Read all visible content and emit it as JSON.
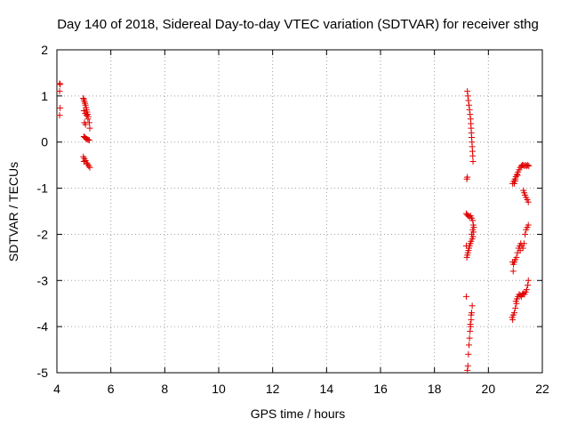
{
  "chart_data": {
    "type": "scatter",
    "title": "Day 140 of 2018, Sidereal Day-to-day VTEC variation (SDTVAR) for receiver sthg",
    "xlabel": "GPS time / hours",
    "ylabel": "SDTVAR / TECUs",
    "xlim": [
      4,
      22
    ],
    "ylim": [
      -5,
      2
    ],
    "xticks": [
      4,
      6,
      8,
      10,
      12,
      14,
      16,
      18,
      20,
      22
    ],
    "yticks": [
      -5,
      -4,
      -3,
      -2,
      -1,
      0,
      1,
      2
    ],
    "grid": true,
    "marker": "+",
    "color": "#e00000",
    "series": [
      {
        "name": "SDTVAR",
        "points": [
          [
            4.1,
            1.27
          ],
          [
            4.12,
            1.25
          ],
          [
            4.1,
            1.1
          ],
          [
            4.12,
            0.74
          ],
          [
            4.1,
            0.58
          ],
          [
            4.98,
            0.95
          ],
          [
            5.0,
            0.92
          ],
          [
            5.02,
            0.88
          ],
          [
            5.04,
            0.84
          ],
          [
            5.06,
            0.8
          ],
          [
            5.08,
            0.75
          ],
          [
            5.1,
            0.7
          ],
          [
            5.12,
            0.65
          ],
          [
            5.14,
            0.6
          ],
          [
            5.16,
            0.55
          ],
          [
            5.0,
            0.68
          ],
          [
            5.05,
            0.62
          ],
          [
            5.1,
            0.58
          ],
          [
            5.15,
            0.5
          ],
          [
            5.2,
            0.42
          ],
          [
            5.22,
            0.3
          ],
          [
            5.02,
            0.42
          ],
          [
            5.06,
            0.38
          ],
          [
            5.0,
            0.12
          ],
          [
            5.04,
            0.1
          ],
          [
            5.08,
            0.08
          ],
          [
            5.12,
            0.06
          ],
          [
            5.16,
            0.05
          ],
          [
            5.2,
            0.04
          ],
          [
            4.98,
            -0.32
          ],
          [
            5.02,
            -0.36
          ],
          [
            5.06,
            -0.4
          ],
          [
            5.1,
            -0.45
          ],
          [
            5.14,
            -0.48
          ],
          [
            5.18,
            -0.52
          ],
          [
            5.22,
            -0.55
          ],
          [
            5.0,
            -0.42
          ],
          [
            19.22,
            1.1
          ],
          [
            19.24,
            1.0
          ],
          [
            19.26,
            0.9
          ],
          [
            19.28,
            0.8
          ],
          [
            19.3,
            0.7
          ],
          [
            19.32,
            0.6
          ],
          [
            19.34,
            0.5
          ],
          [
            19.35,
            0.4
          ],
          [
            19.36,
            0.3
          ],
          [
            19.37,
            0.2
          ],
          [
            19.38,
            0.1
          ],
          [
            19.39,
            0.0
          ],
          [
            19.4,
            -0.1
          ],
          [
            19.41,
            -0.2
          ],
          [
            19.42,
            -0.3
          ],
          [
            19.43,
            -0.42
          ],
          [
            19.2,
            -0.8
          ],
          [
            19.22,
            -0.76
          ],
          [
            19.18,
            -1.55
          ],
          [
            19.22,
            -1.58
          ],
          [
            19.26,
            -1.6
          ],
          [
            19.3,
            -1.62
          ],
          [
            19.34,
            -1.6
          ],
          [
            19.38,
            -1.65
          ],
          [
            19.42,
            -1.7
          ],
          [
            19.44,
            -1.8
          ],
          [
            19.46,
            -1.85
          ],
          [
            19.45,
            -1.95
          ],
          [
            19.43,
            -2.05
          ],
          [
            19.4,
            -2.1
          ],
          [
            19.36,
            -2.15
          ],
          [
            19.33,
            -2.2
          ],
          [
            19.3,
            -2.25
          ],
          [
            19.28,
            -2.3
          ],
          [
            19.26,
            -2.35
          ],
          [
            19.24,
            -2.4
          ],
          [
            19.22,
            -2.45
          ],
          [
            19.2,
            -2.5
          ],
          [
            19.42,
            -1.9
          ],
          [
            19.38,
            -2.0
          ],
          [
            19.18,
            -2.25
          ],
          [
            19.18,
            -3.35
          ],
          [
            19.4,
            -3.55
          ],
          [
            19.38,
            -3.7
          ],
          [
            19.36,
            -3.85
          ],
          [
            19.34,
            -4.0
          ],
          [
            19.32,
            -4.1
          ],
          [
            19.3,
            -4.25
          ],
          [
            19.28,
            -4.4
          ],
          [
            19.26,
            -4.6
          ],
          [
            19.24,
            -4.85
          ],
          [
            19.22,
            -4.95
          ],
          [
            19.36,
            -3.75
          ],
          [
            19.33,
            -3.95
          ],
          [
            20.9,
            -0.9
          ],
          [
            20.94,
            -0.85
          ],
          [
            20.98,
            -0.8
          ],
          [
            21.02,
            -0.75
          ],
          [
            21.06,
            -0.7
          ],
          [
            21.1,
            -0.65
          ],
          [
            21.14,
            -0.6
          ],
          [
            21.18,
            -0.55
          ],
          [
            21.22,
            -0.52
          ],
          [
            21.26,
            -0.5
          ],
          [
            21.3,
            -0.5
          ],
          [
            21.34,
            -0.52
          ],
          [
            21.38,
            -0.5
          ],
          [
            21.42,
            -0.52
          ],
          [
            21.46,
            -0.5
          ],
          [
            21.5,
            -0.52
          ],
          [
            20.96,
            -0.9
          ],
          [
            21.0,
            -0.84
          ],
          [
            21.08,
            -0.72
          ],
          [
            21.3,
            -1.05
          ],
          [
            21.33,
            -1.1
          ],
          [
            21.36,
            -1.15
          ],
          [
            21.4,
            -1.2
          ],
          [
            21.44,
            -1.25
          ],
          [
            21.48,
            -1.3
          ],
          [
            20.9,
            -2.6
          ],
          [
            20.93,
            -2.65
          ],
          [
            20.96,
            -2.6
          ],
          [
            21.0,
            -2.55
          ],
          [
            21.04,
            -2.5
          ],
          [
            21.08,
            -2.4
          ],
          [
            21.12,
            -2.3
          ],
          [
            21.16,
            -2.25
          ],
          [
            21.2,
            -2.2
          ],
          [
            21.24,
            -2.25
          ],
          [
            21.28,
            -2.3
          ],
          [
            21.32,
            -2.2
          ],
          [
            21.36,
            -2.0
          ],
          [
            21.4,
            -1.9
          ],
          [
            21.44,
            -1.85
          ],
          [
            21.48,
            -1.8
          ],
          [
            20.92,
            -2.8
          ],
          [
            21.18,
            -2.35
          ],
          [
            20.88,
            -3.8
          ],
          [
            20.92,
            -3.75
          ],
          [
            20.96,
            -3.7
          ],
          [
            21.0,
            -3.6
          ],
          [
            21.02,
            -3.45
          ],
          [
            21.06,
            -3.4
          ],
          [
            21.1,
            -3.35
          ],
          [
            21.14,
            -3.3
          ],
          [
            21.18,
            -3.32
          ],
          [
            21.22,
            -3.35
          ],
          [
            21.26,
            -3.3
          ],
          [
            21.3,
            -3.28
          ],
          [
            21.34,
            -3.3
          ],
          [
            21.38,
            -3.25
          ],
          [
            21.42,
            -3.2
          ],
          [
            21.46,
            -3.1
          ],
          [
            21.48,
            -3.0
          ],
          [
            20.9,
            -3.85
          ],
          [
            21.04,
            -3.5
          ]
        ]
      }
    ]
  }
}
